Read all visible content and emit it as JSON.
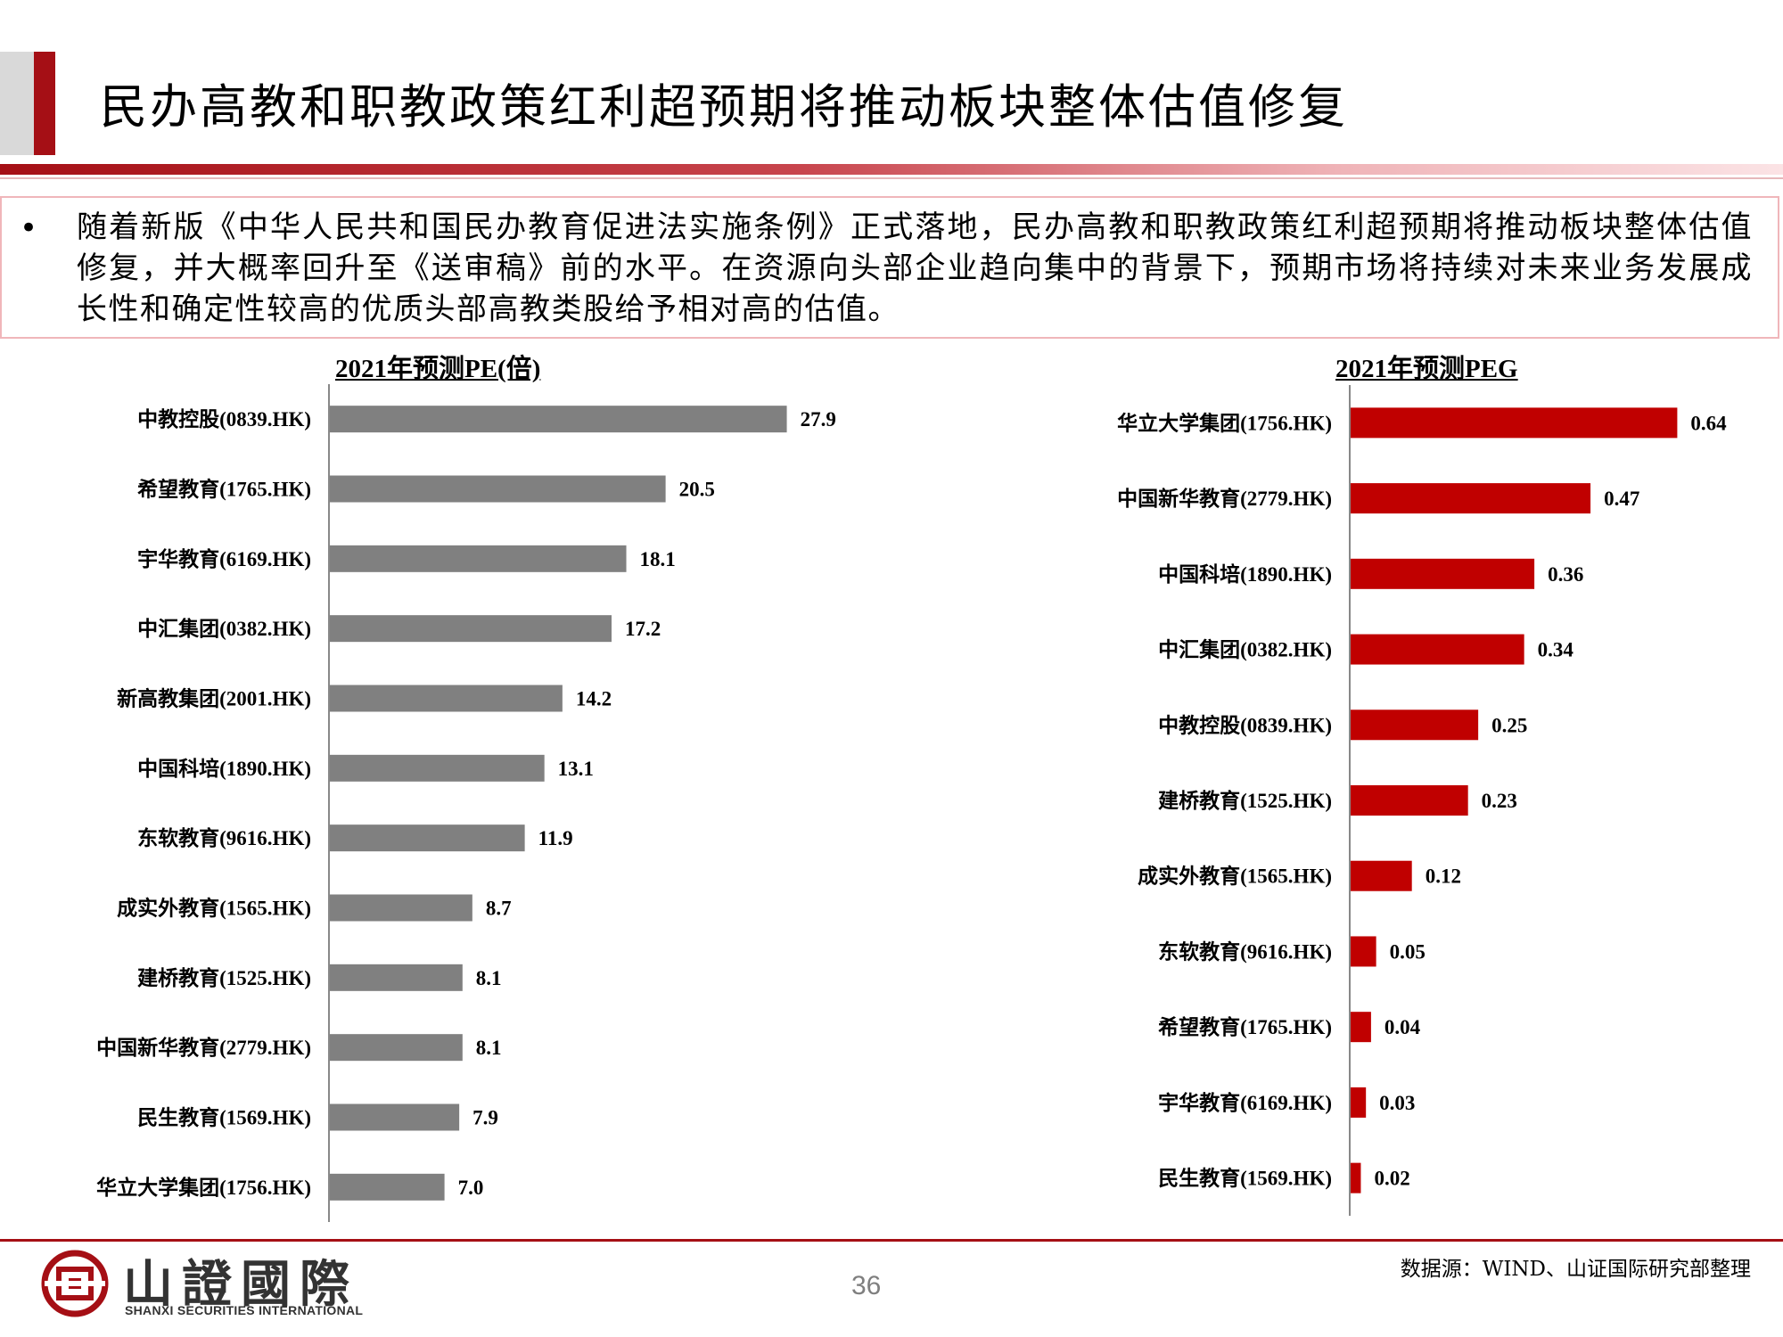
{
  "title": "民办高教和职教政策红利超预期将推动板块整体估值修复",
  "summary": {
    "bullet": "•",
    "text": "随着新版《中华人民共和国民办教育促进法实施条例》正式落地，民办高教和职教政策红利超预期将推动板块整体估值修复，并大概率回升至《送审稿》前的水平。在资源向头部企业趋向集中的背景下，预期市场将持续对未来业务发展成长性和确定性较高的优质头部高教类股给予相对高的估值。"
  },
  "chart_data": [
    {
      "type": "bar",
      "orientation": "horizontal",
      "title": "2021年预测PE(倍)",
      "categories": [
        "中教控股(0839.HK)",
        "希望教育(1765.HK)",
        "宇华教育(6169.HK)",
        "中汇集团(0382.HK)",
        "新高教集团(2001.HK)",
        "中国科培(1890.HK)",
        "东软教育(9616.HK)",
        "成实外教育(1565.HK)",
        "建桥教育(1525.HK)",
        "中国新华教育(2779.HK)",
        "民生教育(1569.HK)",
        "华立大学集团(1756.HK)"
      ],
      "values": [
        27.9,
        20.5,
        18.1,
        17.2,
        14.2,
        13.1,
        11.9,
        8.7,
        8.1,
        8.1,
        7.9,
        7.0
      ],
      "value_labels": [
        "27.9",
        "20.5",
        "18.1",
        "17.2",
        "14.2",
        "13.1",
        "11.9",
        "8.7",
        "8.1",
        "8.1",
        "7.9",
        "7.0"
      ],
      "xlim": [
        0,
        35
      ],
      "color": "#808080",
      "grid": false
    },
    {
      "type": "bar",
      "orientation": "horizontal",
      "title": "2021年预测PEG",
      "categories": [
        "华立大学集团(1756.HK)",
        "中国新华教育(2779.HK)",
        "中国科培(1890.HK)",
        "中汇集团(0382.HK)",
        "中教控股(0839.HK)",
        "建桥教育(1525.HK)",
        "成实外教育(1565.HK)",
        "东软教育(9616.HK)",
        "希望教育(1765.HK)",
        "宇华教育(6169.HK)",
        "民生教育(1569.HK)"
      ],
      "values": [
        0.64,
        0.47,
        0.36,
        0.34,
        0.25,
        0.23,
        0.12,
        0.05,
        0.04,
        0.03,
        0.02
      ],
      "value_labels": [
        "0.64",
        "0.47",
        "0.36",
        "0.34",
        "0.25",
        "0.23",
        "0.12",
        "0.05",
        "0.04",
        "0.03",
        "0.02"
      ],
      "xlim": [
        0,
        0.8
      ],
      "color": "#c00000",
      "grid": false
    }
  ],
  "footer": {
    "logo_text": "山證國際",
    "logo_subtitle": "SHANXI SECURITIES INTERNATIONAL",
    "page_number": "36",
    "source": "数据源：WIND、山证国际研究部整理"
  }
}
